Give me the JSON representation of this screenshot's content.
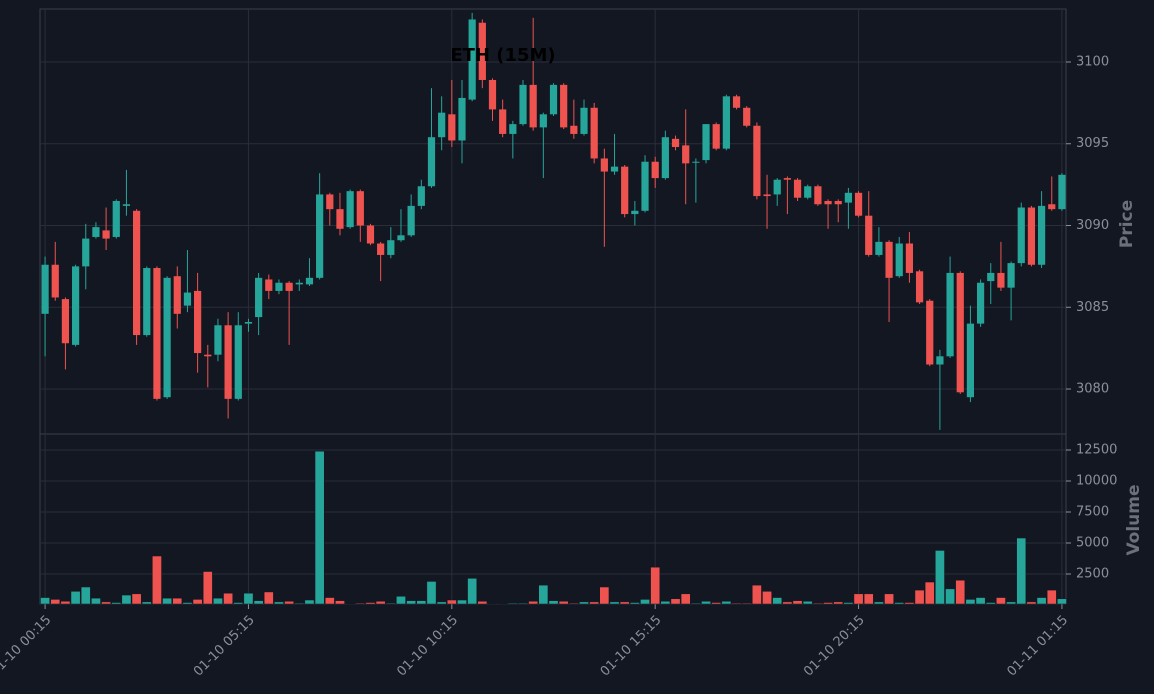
{
  "chart_data": {
    "type": "candlestick",
    "title": "ETH (15M)",
    "ylabel": "Price",
    "categories": [
      "01-10 00:15",
      null,
      null,
      null,
      null,
      null,
      null,
      null,
      null,
      null,
      null,
      null,
      null,
      null,
      null,
      null,
      null,
      null,
      null,
      null,
      "01-10 05:15",
      null,
      null,
      null,
      null,
      null,
      null,
      null,
      null,
      null,
      null,
      null,
      null,
      null,
      null,
      null,
      null,
      null,
      null,
      null,
      "01-10 10:15",
      null,
      null,
      null,
      null,
      null,
      null,
      null,
      null,
      null,
      null,
      null,
      null,
      null,
      null,
      null,
      null,
      null,
      null,
      null,
      "01-10 15:15",
      null,
      null,
      null,
      null,
      null,
      null,
      null,
      null,
      null,
      null,
      null,
      null,
      null,
      null,
      null,
      null,
      null,
      null,
      null,
      "01-10 20:15",
      null,
      null,
      null,
      null,
      null,
      null,
      null,
      null,
      null,
      null,
      null,
      null,
      null,
      null,
      null,
      null,
      null,
      null,
      null,
      "01-11 01:15"
    ],
    "open": [
      3084.6,
      3087.6,
      3085.5,
      3082.7,
      3087.5,
      3089.3,
      3089.7,
      3089.3,
      3091.2,
      3090.9,
      3083.3,
      3087.4,
      3079.5,
      3086.9,
      3085.1,
      3086.0,
      3082.1,
      3082.1,
      3083.9,
      3079.4,
      3084.0,
      3084.4,
      3086.7,
      3086.0,
      3086.5,
      3086.4,
      3086.4,
      3086.8,
      3091.9,
      3091.0,
      3089.9,
      3092.1,
      3090.0,
      3088.9,
      3088.2,
      3089.1,
      3089.4,
      3091.2,
      3092.4,
      3095.4,
      3096.8,
      3095.2,
      3097.7,
      3102.4,
      3098.9,
      3097.1,
      3095.6,
      3096.2,
      3098.6,
      3096.0,
      3096.8,
      3098.6,
      3096.1,
      3095.6,
      3097.2,
      3094.1,
      3093.3,
      3093.6,
      3090.7,
      3090.9,
      3093.9,
      3092.9,
      3095.3,
      3094.9,
      3093.9,
      3094.0,
      3096.2,
      3094.7,
      3097.9,
      3097.2,
      3096.1,
      3091.9,
      3091.9,
      3092.9,
      3092.8,
      3091.7,
      3092.4,
      3091.5,
      3091.5,
      3091.4,
      3092.0,
      3090.6,
      3088.2,
      3089.0,
      3086.9,
      3088.9,
      3087.2,
      3085.4,
      3081.5,
      3082.0,
      3087.1,
      3079.5,
      3084.0,
      3086.6,
      3087.1,
      3086.2,
      3087.7,
      3091.1,
      3087.6,
      3091.3,
      3091.0
    ],
    "high": [
      3088.1,
      3089.0,
      3085.6,
      3087.6,
      3090.1,
      3090.2,
      3091.1,
      3091.6,
      3093.4,
      3091.0,
      3087.5,
      3087.5,
      3086.9,
      3087.5,
      3088.5,
      3087.1,
      3082.7,
      3084.3,
      3084.7,
      3084.7,
      3084.3,
      3087.1,
      3087.0,
      3086.7,
      3086.6,
      3086.7,
      3088.0,
      3093.2,
      3092.0,
      3092.0,
      3092.2,
      3092.2,
      3090.1,
      3089.0,
      3089.9,
      3091.0,
      3091.9,
      3092.8,
      3098.4,
      3097.9,
      3098.9,
      3098.9,
      3103.0,
      3102.6,
      3099.0,
      3097.7,
      3096.4,
      3098.9,
      3102.7,
      3096.9,
      3098.7,
      3098.7,
      3097.7,
      3097.7,
      3097.5,
      3094.7,
      3095.6,
      3093.7,
      3091.5,
      3094.3,
      3094.2,
      3095.8,
      3095.5,
      3097.1,
      3094.1,
      3096.2,
      3096.3,
      3098.0,
      3098.0,
      3097.3,
      3096.3,
      3093.1,
      3092.9,
      3093.0,
      3092.9,
      3092.5,
      3092.5,
      3091.6,
      3091.6,
      3092.3,
      3092.1,
      3092.1,
      3089.9,
      3089.1,
      3089.3,
      3089.6,
      3087.3,
      3085.5,
      3082.4,
      3088.1,
      3087.2,
      3085.1,
      3086.7,
      3087.7,
      3089.0,
      3087.8,
      3091.4,
      3091.2,
      3092.1,
      3093.0,
      3093.2
    ],
    "low": [
      3082.0,
      3085.4,
      3081.2,
      3082.6,
      3086.1,
      3089.2,
      3088.5,
      3089.2,
      3090.6,
      3082.7,
      3083.2,
      3079.3,
      3079.4,
      3083.7,
      3084.7,
      3081.0,
      3080.1,
      3081.7,
      3078.2,
      3079.3,
      3083.5,
      3083.3,
      3085.5,
      3085.8,
      3082.7,
      3086.0,
      3086.3,
      3086.7,
      3090.0,
      3089.4,
      3089.8,
      3089.0,
      3088.8,
      3086.6,
      3088.0,
      3089.0,
      3089.3,
      3091.0,
      3092.3,
      3094.6,
      3094.8,
      3093.8,
      3097.6,
      3098.4,
      3096.4,
      3095.4,
      3094.1,
      3096.1,
      3095.8,
      3092.9,
      3096.7,
      3095.9,
      3095.3,
      3095.5,
      3093.8,
      3088.7,
      3093.1,
      3090.5,
      3090.0,
      3090.8,
      3092.3,
      3092.8,
      3094.6,
      3091.3,
      3091.4,
      3093.8,
      3094.6,
      3094.6,
      3097.1,
      3096.0,
      3091.6,
      3089.8,
      3091.2,
      3090.7,
      3091.5,
      3091.6,
      3091.2,
      3089.8,
      3090.2,
      3089.8,
      3090.5,
      3088.1,
      3088.1,
      3084.1,
      3086.8,
      3086.5,
      3085.2,
      3081.4,
      3077.5,
      3081.9,
      3079.7,
      3079.2,
      3083.8,
      3085.2,
      3086.0,
      3084.2,
      3087.5,
      3087.5,
      3087.4,
      3090.9,
      3090.9
    ],
    "close": [
      3087.6,
      3085.6,
      3082.8,
      3087.5,
      3089.2,
      3089.9,
      3089.2,
      3091.5,
      3091.3,
      3083.3,
      3087.4,
      3079.4,
      3086.8,
      3084.6,
      3085.9,
      3082.2,
      3082.0,
      3083.9,
      3079.4,
      3083.9,
      3084.1,
      3086.8,
      3086.0,
      3086.5,
      3086.0,
      3086.5,
      3086.8,
      3091.9,
      3091.0,
      3089.8,
      3092.1,
      3090.0,
      3088.9,
      3088.2,
      3089.1,
      3089.4,
      3091.2,
      3092.4,
      3095.4,
      3096.9,
      3095.2,
      3097.8,
      3102.6,
      3098.9,
      3097.1,
      3095.6,
      3096.2,
      3098.6,
      3096.0,
      3096.8,
      3098.6,
      3096.0,
      3095.6,
      3097.2,
      3094.1,
      3093.3,
      3093.6,
      3090.7,
      3090.9,
      3093.9,
      3092.9,
      3095.4,
      3094.8,
      3093.8,
      3093.9,
      3096.2,
      3094.7,
      3097.9,
      3097.2,
      3096.1,
      3091.8,
      3091.8,
      3092.8,
      3092.8,
      3091.7,
      3092.4,
      3091.3,
      3091.3,
      3091.3,
      3092.0,
      3090.6,
      3088.2,
      3089.0,
      3086.8,
      3088.9,
      3087.1,
      3085.3,
      3081.5,
      3082.0,
      3087.1,
      3079.8,
      3084.0,
      3086.5,
      3087.1,
      3086.2,
      3087.7,
      3091.1,
      3087.6,
      3091.2,
      3091.0,
      3093.1
    ],
    "ylim": [
      3077.25,
      3103.24
    ],
    "yticks": [
      3080,
      3085,
      3090,
      3095,
      3100
    ],
    "up_color": "#26a69a",
    "down_color": "#ef5350",
    "grid": true,
    "volume": {
      "ylabel": "Volume",
      "values": [
        600,
        450,
        300,
        1100,
        1450,
        550,
        250,
        200,
        800,
        900,
        250,
        3950,
        550,
        550,
        200,
        450,
        2700,
        550,
        950,
        200,
        950,
        350,
        1050,
        250,
        300,
        150,
        400,
        12400,
        600,
        350,
        100,
        150,
        200,
        300,
        150,
        700,
        350,
        350,
        1900,
        250,
        400,
        400,
        2150,
        300,
        100,
        100,
        150,
        150,
        300,
        1600,
        350,
        300,
        150,
        250,
        250,
        1450,
        250,
        250,
        200,
        450,
        3050,
        300,
        500,
        900,
        150,
        300,
        200,
        300,
        150,
        150,
        1600,
        1100,
        600,
        250,
        350,
        300,
        150,
        200,
        250,
        200,
        900,
        900,
        250,
        900,
        200,
        200,
        1200,
        1850,
        4400,
        1300,
        2000,
        450,
        600,
        200,
        600,
        250,
        5400,
        250,
        600,
        1200,
        500
      ],
      "ylim": [
        80,
        13790
      ],
      "yticks": [
        2500,
        5000,
        7500,
        10000,
        12500
      ]
    }
  }
}
